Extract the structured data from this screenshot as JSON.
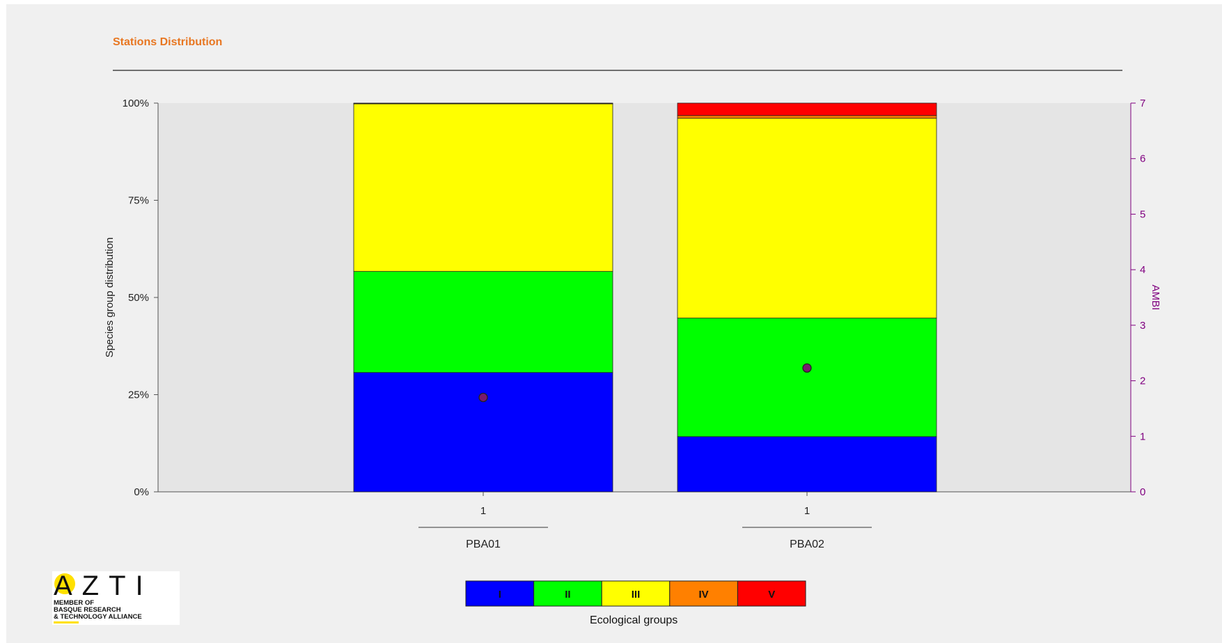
{
  "title": "Stations Distribution",
  "chart_data": {
    "type": "bar",
    "stacked": true,
    "normalized": true,
    "ylabel": "Species group distribution",
    "y2label": "AMBI",
    "yticks": [
      "0%",
      "25%",
      "50%",
      "75%",
      "100%"
    ],
    "y2ticks": [
      "0",
      "1",
      "2",
      "3",
      "4",
      "5",
      "6",
      "7"
    ],
    "ylim": [
      0,
      100
    ],
    "y2lim": [
      0,
      7
    ],
    "grid": false,
    "bars": [
      {
        "tick": "1",
        "station": "PBA01",
        "segments": [
          30.7,
          26.0,
          43.1,
          0.1,
          0.1
        ],
        "ambi": 1.7
      },
      {
        "tick": "1",
        "station": "PBA02",
        "segments": [
          14.2,
          30.5,
          51.4,
          0.7,
          3.2
        ],
        "ambi": 2.23
      }
    ],
    "legend": {
      "caption": "Ecological groups",
      "placement": "bottom",
      "items": [
        {
          "label": "I",
          "color": "#0000ff"
        },
        {
          "label": "II",
          "color": "#00ff00"
        },
        {
          "label": "III",
          "color": "#ffff00"
        },
        {
          "label": "IV",
          "color": "#ff8000"
        },
        {
          "label": "V",
          "color": "#ff0000"
        }
      ]
    },
    "ambi_color": "#800080",
    "marker_fill": "#7a1a6e"
  },
  "logo": {
    "text": "AZTI",
    "tagline": "MEMBER OF\nBASQUE RESEARCH\n& TECHNOLOGY ALLIANCE"
  }
}
